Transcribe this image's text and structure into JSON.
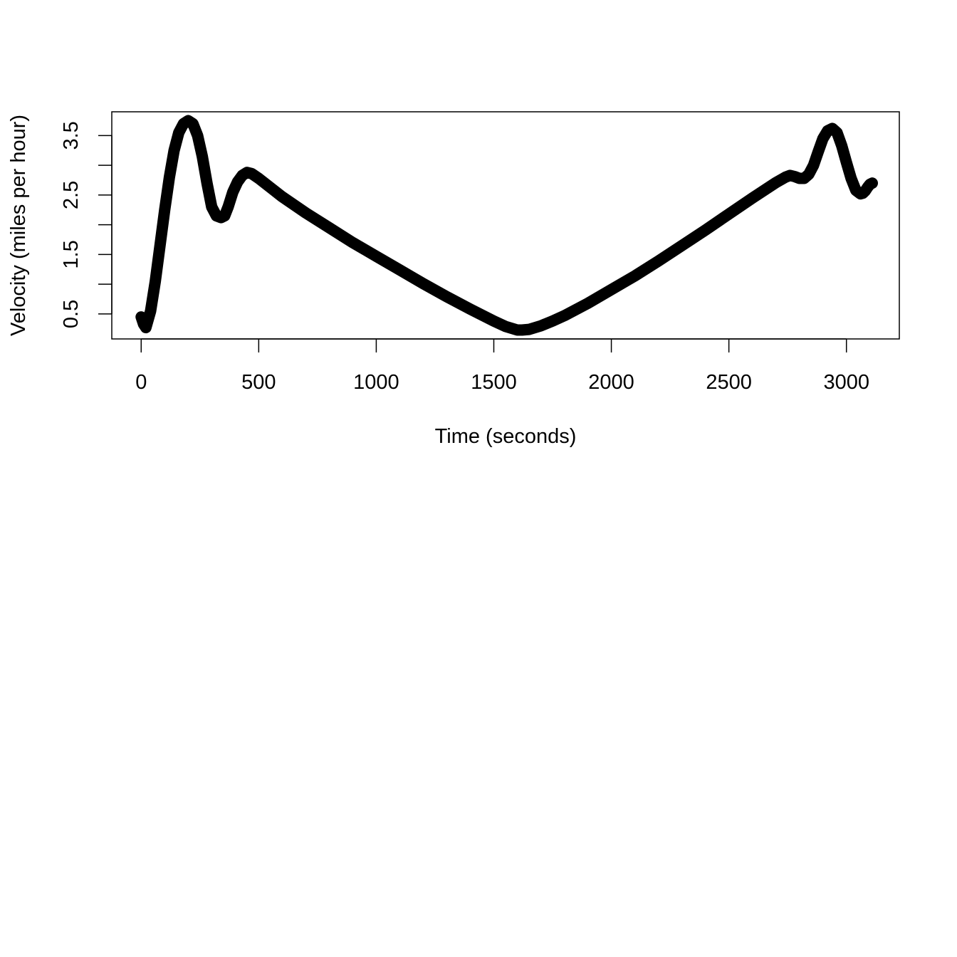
{
  "chart_data": {
    "type": "line",
    "title": "",
    "xlabel": "Time (seconds)",
    "ylabel": "Velocity (miles per hour)",
    "xlim": [
      -125,
      3225
    ],
    "ylim": [
      0.08,
      3.9
    ],
    "x_ticks": [
      0,
      500,
      1000,
      1500,
      2000,
      2500,
      3000
    ],
    "x_tick_labels": [
      "0",
      "500",
      "1000",
      "1500",
      "2000",
      "2500",
      "3000"
    ],
    "y_ticks": [
      0.5,
      1.0,
      1.5,
      2.0,
      2.5,
      3.0,
      3.5
    ],
    "y_tick_labels": [
      "0.5",
      "",
      "1.5",
      "",
      "2.5",
      "",
      "3.5"
    ],
    "grid": false,
    "legend": "none",
    "line_color": "#000000",
    "series": [
      {
        "x": [
          0,
          10,
          20,
          40,
          60,
          80,
          100,
          120,
          140,
          160,
          180,
          200,
          220,
          240,
          260,
          280,
          300,
          320,
          340,
          355,
          370,
          390,
          410,
          430,
          450,
          470,
          500,
          600,
          700,
          800,
          900,
          1000,
          1100,
          1200,
          1300,
          1400,
          1500,
          1550,
          1600,
          1620,
          1650,
          1700,
          1750,
          1800,
          1900,
          2000,
          2100,
          2200,
          2300,
          2400,
          2500,
          2600,
          2700,
          2740,
          2760,
          2780,
          2800,
          2820,
          2840,
          2860,
          2880,
          2900,
          2920,
          2940,
          2960,
          2980,
          3000,
          3020,
          3040,
          3060,
          3070,
          3080,
          3090,
          3100,
          3110
        ],
        "y": [
          0.45,
          0.33,
          0.27,
          0.55,
          1.05,
          1.65,
          2.25,
          2.8,
          3.25,
          3.55,
          3.7,
          3.75,
          3.7,
          3.5,
          3.15,
          2.7,
          2.3,
          2.15,
          2.12,
          2.15,
          2.3,
          2.55,
          2.72,
          2.83,
          2.88,
          2.86,
          2.78,
          2.47,
          2.2,
          1.95,
          1.7,
          1.47,
          1.24,
          1.01,
          0.79,
          0.58,
          0.38,
          0.29,
          0.23,
          0.23,
          0.24,
          0.3,
          0.38,
          0.47,
          0.68,
          0.91,
          1.14,
          1.39,
          1.65,
          1.91,
          2.18,
          2.45,
          2.71,
          2.8,
          2.83,
          2.81,
          2.78,
          2.78,
          2.85,
          3.0,
          3.23,
          3.45,
          3.58,
          3.62,
          3.55,
          3.33,
          3.05,
          2.78,
          2.58,
          2.52,
          2.53,
          2.57,
          2.63,
          2.68,
          2.7
        ]
      }
    ]
  }
}
